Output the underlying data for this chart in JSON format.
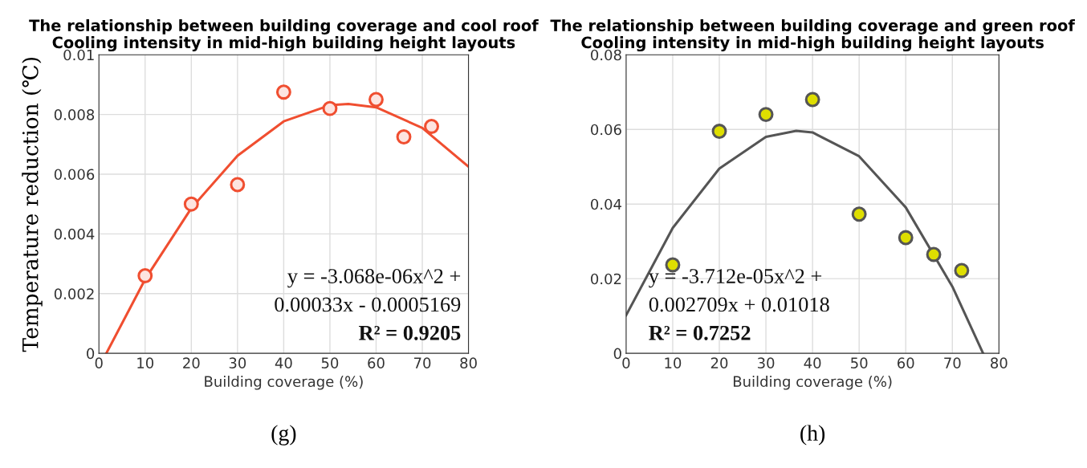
{
  "chart_data": [
    {
      "type": "scatter",
      "title": "The relationship between building coverage and cool roof\nCooling intensity in mid-high building height layouts",
      "xlabel": "Building coverage (%)",
      "ylabel": "Temperature reduction (℃)",
      "xlim": [
        0,
        80
      ],
      "xticks": [
        0,
        10,
        20,
        30,
        40,
        50,
        60,
        70,
        80
      ],
      "ylim": [
        0,
        0.01
      ],
      "yticks": [
        0,
        0.002,
        0.004,
        0.006,
        0.008,
        0.01
      ],
      "grid": true,
      "legend": false,
      "marker": "circle",
      "series": [
        {
          "color": "#f04e30",
          "x": [
            10,
            20,
            30,
            40,
            50,
            60,
            66,
            72
          ],
          "values": [
            0.0026,
            0.005,
            0.00565,
            0.00875,
            0.0082,
            0.0085,
            0.00725,
            0.0076
          ]
        },
        {
          "type": "line",
          "color": "#f04e30",
          "marker": "none",
          "x": [
            1.6,
            10,
            20,
            30,
            40,
            50,
            54,
            60,
            70,
            80
          ],
          "values": [
            0,
            0.00248,
            0.00486,
            0.00662,
            0.00777,
            0.00831,
            0.00835,
            0.00824,
            0.00755,
            0.00625
          ]
        }
      ],
      "annotations": [
        "y = -3.068e-06x^2 +",
        "0.00033x - 0.0005169",
        "R² = 0.9205",
        "(g)"
      ]
    },
    {
      "type": "scatter",
      "title": "The relationship between building coverage and green roof\nCooling intensity in mid-high building height layouts",
      "xlabel": "Building coverage (%)",
      "xlim": [
        0,
        80
      ],
      "xticks": [
        0,
        10,
        20,
        30,
        40,
        50,
        60,
        70,
        80
      ],
      "ylim": [
        0,
        0.08
      ],
      "yticks": [
        0,
        0.02,
        0.04,
        0.06,
        0.08
      ],
      "grid": true,
      "legend": false,
      "marker": "circle",
      "series": [
        {
          "color": "#dede00",
          "x": [
            10,
            20,
            30,
            40,
            50,
            60,
            66,
            72
          ],
          "values": [
            0.0237,
            0.0595,
            0.064,
            0.068,
            0.0373,
            0.031,
            0.0265,
            0.0222
          ]
        },
        {
          "type": "line",
          "color": "#555555",
          "marker": "none",
          "x": [
            0,
            10,
            20,
            30,
            36.5,
            40,
            50,
            60,
            70,
            76.6
          ],
          "values": [
            0.0102,
            0.0336,
            0.0495,
            0.058,
            0.0596,
            0.0592,
            0.0528,
            0.0391,
            0.0179,
            0
          ]
        }
      ],
      "annotations": [
        "y = -3.712e-05x^2 +",
        "0.002709x + 0.01018",
        "R² = 0.7252",
        "(h)"
      ]
    }
  ]
}
